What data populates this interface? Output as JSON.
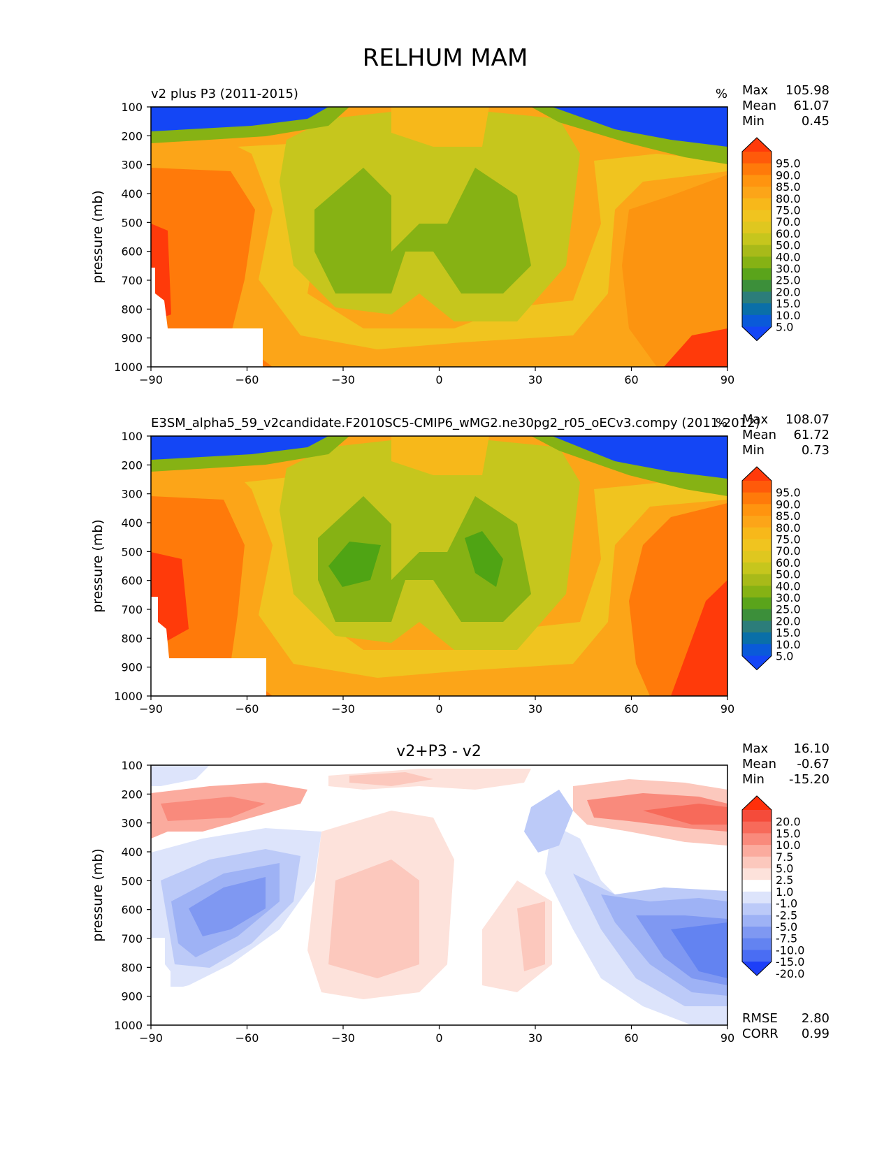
{
  "figure": {
    "title": "RELHUM MAM"
  },
  "chart_data": [
    {
      "type": "contour",
      "title_left": "v2 plus P3 (2011-2015)",
      "units": "%",
      "stats": [
        {
          "label": "Max",
          "value": "105.98"
        },
        {
          "label": "Mean",
          "value": "61.07"
        },
        {
          "label": "Min",
          "value": "0.45"
        }
      ],
      "ylabel": "pressure (mb)",
      "xlabel": "",
      "xlim": [
        -90,
        90
      ],
      "ylim": [
        1000,
        100
      ],
      "x_ticks": [
        "−90",
        "−60",
        "−30",
        "0",
        "30",
        "60",
        "90"
      ],
      "y_ticks": [
        "100",
        "200",
        "300",
        "400",
        "500",
        "600",
        "700",
        "800",
        "900",
        "1000"
      ],
      "colorbar_levels": [
        "95.0",
        "90.0",
        "85.0",
        "80.0",
        "75.0",
        "70.0",
        "60.0",
        "50.0",
        "40.0",
        "30.0",
        "25.0",
        "20.0",
        "15.0",
        "10.0",
        "5.0"
      ],
      "colorbar_colors": [
        "#ff3a0a",
        "#ff5a0a",
        "#ff7a0a",
        "#ff940f",
        "#fca518",
        "#f7b81a",
        "#f0c41f",
        "#dfc71f",
        "#c6c61d",
        "#a8ba19",
        "#86b214",
        "#5aa41b",
        "#3c8f3a",
        "#2c7d7a",
        "#0a6fa8",
        "#0a5ad9",
        "#1446f5"
      ]
    },
    {
      "type": "contour",
      "title_left": "E3SM_alpha5_59_v2candidate.F2010SC5-CMIP6_wMG2.ne30pg2_r05_oECv3.compy (2011-2012)",
      "units": "%",
      "stats": [
        {
          "label": "Max",
          "value": "108.07"
        },
        {
          "label": "Mean",
          "value": "61.72"
        },
        {
          "label": "Min",
          "value": "0.73"
        }
      ],
      "ylabel": "pressure (mb)",
      "xlabel": "",
      "xlim": [
        -90,
        90
      ],
      "ylim": [
        1000,
        100
      ],
      "x_ticks": [
        "−90",
        "−60",
        "−30",
        "0",
        "30",
        "60",
        "90"
      ],
      "y_ticks": [
        "100",
        "200",
        "300",
        "400",
        "500",
        "600",
        "700",
        "800",
        "900",
        "1000"
      ],
      "colorbar_levels": [
        "95.0",
        "90.0",
        "85.0",
        "80.0",
        "75.0",
        "70.0",
        "60.0",
        "50.0",
        "40.0",
        "30.0",
        "25.0",
        "20.0",
        "15.0",
        "10.0",
        "5.0"
      ],
      "colorbar_colors": [
        "#ff3a0a",
        "#ff5a0a",
        "#ff7a0a",
        "#ff940f",
        "#fca518",
        "#f7b81a",
        "#f0c41f",
        "#dfc71f",
        "#c6c61d",
        "#a8ba19",
        "#86b214",
        "#5aa41b",
        "#3c8f3a",
        "#2c7d7a",
        "#0a6fa8",
        "#0a5ad9",
        "#1446f5"
      ]
    },
    {
      "type": "contour",
      "title_center": "v2+P3 - v2",
      "stats": [
        {
          "label": "Max",
          "value": "16.10"
        },
        {
          "label": "Mean",
          "value": "-0.67"
        },
        {
          "label": "Min",
          "value": "-15.20"
        }
      ],
      "bottom_stats": [
        {
          "label": "RMSE",
          "value": "2.80"
        },
        {
          "label": "CORR",
          "value": "0.99"
        }
      ],
      "ylabel": "pressure (mb)",
      "xlabel": "",
      "xlim": [
        -90,
        90
      ],
      "ylim": [
        1000,
        100
      ],
      "x_ticks": [
        "−90",
        "−60",
        "−30",
        "0",
        "30",
        "60",
        "90"
      ],
      "y_ticks": [
        "100",
        "200",
        "300",
        "400",
        "500",
        "600",
        "700",
        "800",
        "900",
        "1000"
      ],
      "colorbar_levels": [
        "20.0",
        "15.0",
        "10.0",
        "7.5",
        "5.0",
        "2.5",
        "1.0",
        "-1.0",
        "-2.5",
        "-5.0",
        "-7.5",
        "-10.0",
        "-15.0",
        "-20.0"
      ],
      "colorbar_colors": [
        "#ff2f0a",
        "#f54b3a",
        "#f76a5a",
        "#f98a7c",
        "#fbab9e",
        "#fcc8bd",
        "#fde2db",
        "#ffffff",
        "#dde4fb",
        "#bccaf8",
        "#9eb2f5",
        "#7f98f2",
        "#6383f1",
        "#4a6df3",
        "#1d3ff8"
      ]
    }
  ]
}
